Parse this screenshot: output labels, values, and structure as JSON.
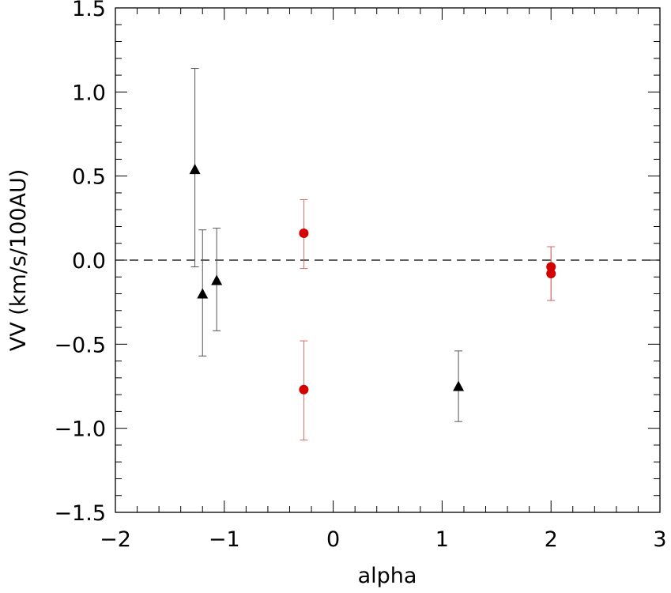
{
  "chart_data": {
    "type": "scatter",
    "title": "",
    "xlabel": "alpha",
    "ylabel": "VV (km/s/100AU)",
    "xlim": [
      -2,
      3
    ],
    "ylim": [
      -1.5,
      1.5
    ],
    "x_ticks": [
      -2,
      -1,
      0,
      1,
      2,
      3
    ],
    "x_tick_labels": [
      "−2",
      "−1",
      "0",
      "1",
      "2",
      "3"
    ],
    "y_ticks": [
      -1.5,
      -1.0,
      -0.5,
      0.0,
      0.5,
      1.0,
      1.5
    ],
    "y_tick_labels": [
      "−1.5",
      "−1.0",
      "−0.5",
      "0.0",
      "0.5",
      "1.0",
      "1.5"
    ],
    "reference_line": {
      "y": 0.0,
      "style": "dashed",
      "color": "#000000"
    },
    "grid": false,
    "series": [
      {
        "marker": "triangle",
        "color": "#000000",
        "errorbar_color": "#555555",
        "points": [
          {
            "x": -1.27,
            "y": 0.54,
            "err_low": 0.58,
            "err_high": 0.6
          },
          {
            "x": -1.2,
            "y": -0.2,
            "err_low": 0.37,
            "err_high": 0.38
          },
          {
            "x": -1.07,
            "y": -0.12,
            "err_low": 0.3,
            "err_high": 0.31
          },
          {
            "x": 1.15,
            "y": -0.75,
            "err_low": 0.21,
            "err_high": 0.21
          }
        ]
      },
      {
        "marker": "circle",
        "color": "#d40000",
        "errorbar_color": "#d46a6a",
        "points": [
          {
            "x": -0.27,
            "y": 0.16,
            "err_low": 0.21,
            "err_high": 0.2
          },
          {
            "x": -0.27,
            "y": -0.77,
            "err_low": 0.3,
            "err_high": 0.29
          },
          {
            "x": 2.0,
            "y": -0.04,
            "err_low": 0.2,
            "err_high": 0.12
          },
          {
            "x": 2.0,
            "y": -0.08,
            "err_low": 0.16,
            "err_high": 0.16
          }
        ]
      }
    ]
  }
}
